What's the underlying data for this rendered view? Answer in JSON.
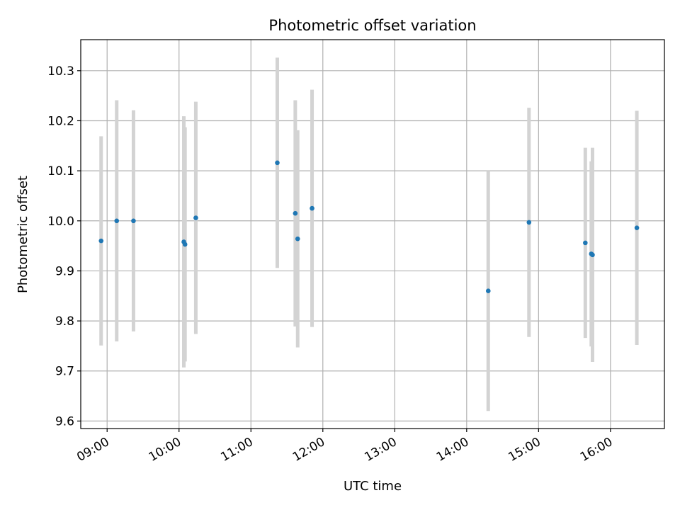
{
  "chart_data": {
    "type": "scatter",
    "title": "Photometric offset variation",
    "xlabel": "UTC time",
    "ylabel": "Photometric offset",
    "x_axis_type": "time",
    "xlim": [
      "08:38",
      "16:45"
    ],
    "ylim": [
      9.585,
      10.362
    ],
    "x_ticks": [
      "09:00",
      "10:00",
      "11:00",
      "12:00",
      "13:00",
      "14:00",
      "15:00",
      "16:00"
    ],
    "y_ticks": [
      "9.6",
      "9.7",
      "9.8",
      "9.9",
      "10.0",
      "10.1",
      "10.2",
      "10.3"
    ],
    "grid": true,
    "colors": {
      "points": "#1f77b4",
      "errorbars": "#d3d3d3",
      "grid": "#b0b0b0"
    },
    "series": [
      {
        "x": [
          "08:55",
          "09:08",
          "09:22",
          "10:04",
          "10:05",
          "10:14",
          "11:22",
          "11:37",
          "11:39",
          "11:51",
          "14:18",
          "14:52",
          "15:39",
          "15:44",
          "15:45",
          "16:22"
        ],
        "y": [
          9.96,
          10.0,
          10.0,
          9.958,
          9.953,
          10.006,
          10.116,
          10.015,
          9.964,
          10.025,
          9.86,
          9.997,
          9.956,
          9.934,
          9.932,
          9.986
        ],
        "error": [
          0.209,
          0.241,
          0.221,
          0.251,
          0.234,
          0.232,
          0.21,
          0.226,
          0.217,
          0.237,
          0.24,
          0.229,
          0.19,
          0.185,
          0.214,
          0.234
        ]
      }
    ]
  }
}
